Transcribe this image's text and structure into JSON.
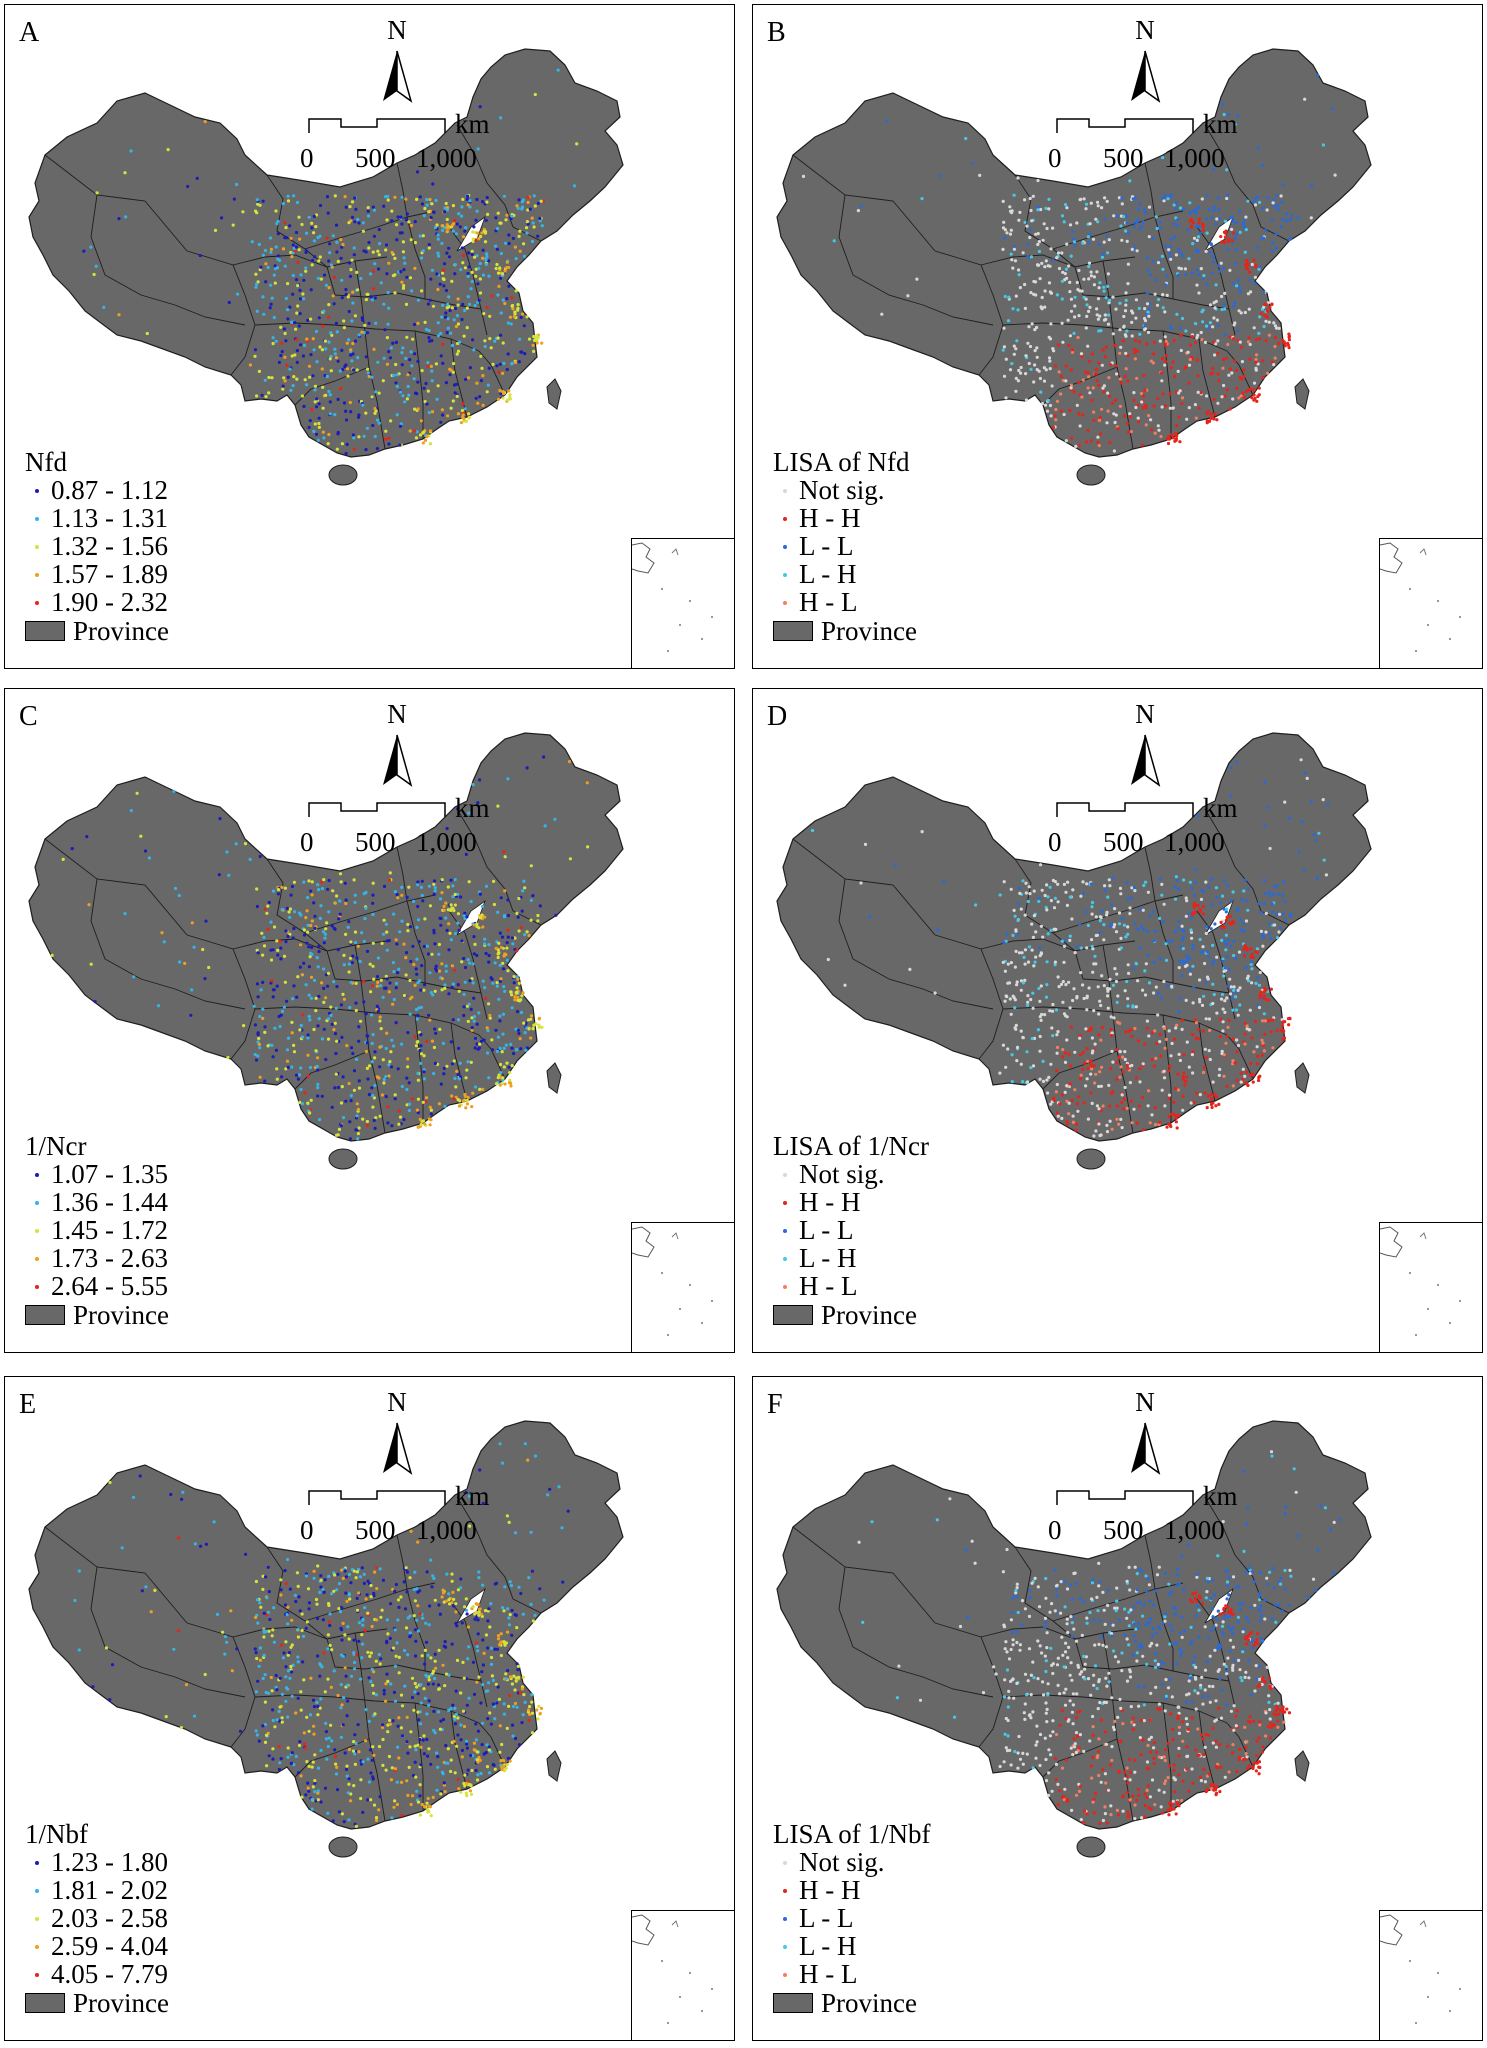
{
  "colors": {
    "land": "#686868",
    "boundary": "#1e1e1e",
    "bg": "#ffffff",
    "class_1": "#1c1cb8",
    "class_2": "#36b4e6",
    "class_3": "#d6e33a",
    "class_4": "#f0a020",
    "class_5": "#e8231a",
    "lisa_not_sig": "#d8d8d8",
    "lisa_hh": "#e8231a",
    "lisa_ll": "#2a6ad8",
    "lisa_lh": "#46c8e8",
    "lisa_hl": "#f08060"
  },
  "north_label": "N",
  "scale": {
    "ticks": [
      "0",
      "500",
      "1,000"
    ],
    "unit": "km"
  },
  "province_label": "Province",
  "panels": [
    {
      "letter": "A",
      "legend_title": "Nfd",
      "kind": "classes",
      "items": [
        {
          "label": "0.87 - 1.12",
          "color": "#1c1cb8"
        },
        {
          "label": "1.13 - 1.31",
          "color": "#36b4e6"
        },
        {
          "label": "1.32 - 1.56",
          "color": "#d6e33a"
        },
        {
          "label": "1.57 - 1.89",
          "color": "#f0a020"
        },
        {
          "label": "1.90 - 2.32",
          "color": "#e8231a"
        }
      ]
    },
    {
      "letter": "B",
      "legend_title": "LISA of Nfd",
      "kind": "lisa",
      "items": [
        {
          "label": "Not sig.",
          "color": "#d8d8d8"
        },
        {
          "label": "H - H",
          "color": "#e8231a"
        },
        {
          "label": "L - L",
          "color": "#2a6ad8"
        },
        {
          "label": "L - H",
          "color": "#46c8e8"
        },
        {
          "label": "H - L",
          "color": "#f08060"
        }
      ]
    },
    {
      "letter": "C",
      "legend_title": "1/Ncr",
      "kind": "classes",
      "items": [
        {
          "label": "1.07 - 1.35",
          "color": "#1c1cb8"
        },
        {
          "label": "1.36 - 1.44",
          "color": "#36b4e6"
        },
        {
          "label": "1.45 - 1.72",
          "color": "#d6e33a"
        },
        {
          "label": "1.73 - 2.63",
          "color": "#f0a020"
        },
        {
          "label": "2.64 - 5.55",
          "color": "#e8231a"
        }
      ]
    },
    {
      "letter": "D",
      "legend_title": "LISA of 1/Ncr",
      "kind": "lisa",
      "items": [
        {
          "label": "Not sig.",
          "color": "#d8d8d8"
        },
        {
          "label": "H - H",
          "color": "#e8231a"
        },
        {
          "label": "L - L",
          "color": "#2a6ad8"
        },
        {
          "label": "L - H",
          "color": "#46c8e8"
        },
        {
          "label": "H - L",
          "color": "#f08060"
        }
      ]
    },
    {
      "letter": "E",
      "legend_title": "1/Nbf",
      "kind": "classes",
      "items": [
        {
          "label": "1.23 - 1.80",
          "color": "#1c1cb8"
        },
        {
          "label": "1.81 - 2.02",
          "color": "#36b4e6"
        },
        {
          "label": "2.03 - 2.58",
          "color": "#d6e33a"
        },
        {
          "label": "2.59 - 4.04",
          "color": "#f0a020"
        },
        {
          "label": "4.05 - 7.79",
          "color": "#e8231a"
        }
      ]
    },
    {
      "letter": "F",
      "legend_title": "LISA of 1/Nbf",
      "kind": "lisa",
      "items": [
        {
          "label": "Not sig.",
          "color": "#d8d8d8"
        },
        {
          "label": "H - H",
          "color": "#e8231a"
        },
        {
          "label": "L - L",
          "color": "#2a6ad8"
        },
        {
          "label": "L - H",
          "color": "#46c8e8"
        },
        {
          "label": "H - L",
          "color": "#f08060"
        }
      ]
    }
  ]
}
